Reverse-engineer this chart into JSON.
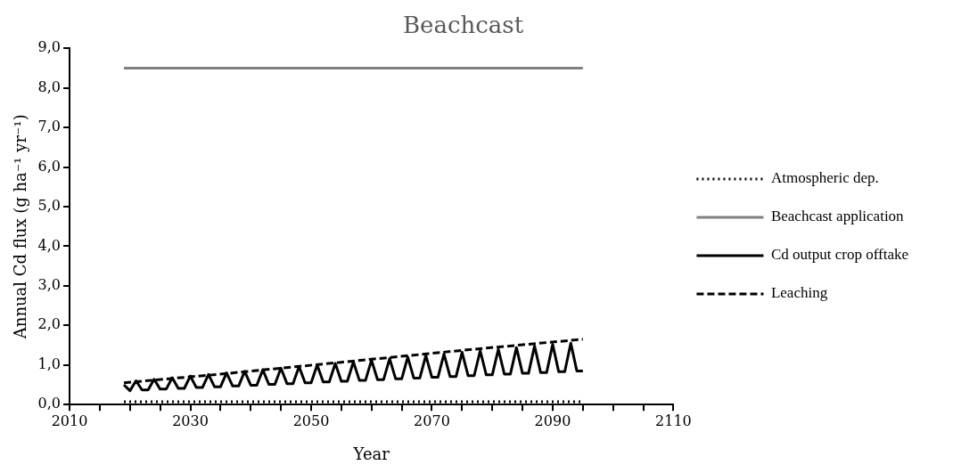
{
  "chart_data": {
    "type": "line",
    "title": "Beachcast",
    "xlabel": "Year",
    "ylabel": "Annual Cd flux (g ha⁻¹ yr⁻¹)",
    "xlim": [
      2010,
      2110
    ],
    "xticks": [
      2010,
      {
        "value": 2015,
        "label": null
      },
      {
        "value": 2020,
        "label": null
      },
      {
        "value": 2025,
        "label": null
      },
      2030,
      {
        "value": 2035,
        "label": null
      },
      {
        "value": 2040,
        "label": null
      },
      {
        "value": 2045,
        "label": null
      },
      2050,
      {
        "value": 2055,
        "label": null
      },
      {
        "value": 2060,
        "label": null
      },
      {
        "value": 2065,
        "label": null
      },
      2070,
      {
        "value": 2075,
        "label": null
      },
      {
        "value": 2080,
        "label": null
      },
      {
        "value": 2085,
        "label": null
      },
      2090,
      {
        "value": 2095,
        "label": null
      },
      {
        "value": 2100,
        "label": null
      },
      {
        "value": 2105,
        "label": null
      },
      2110
    ],
    "ylim": [
      0,
      9
    ],
    "yticks": [
      {
        "value": 0,
        "label": "0,0"
      },
      {
        "value": 1,
        "label": "1,0"
      },
      {
        "value": 2,
        "label": "2,0"
      },
      {
        "value": 3,
        "label": "3,0"
      },
      {
        "value": 4,
        "label": "4,0"
      },
      {
        "value": 5,
        "label": "5,0"
      },
      {
        "value": 6,
        "label": "6,0"
      },
      {
        "value": 7,
        "label": "7,0"
      },
      {
        "value": 8,
        "label": "8,0"
      },
      {
        "value": 9,
        "label": "9,0"
      }
    ],
    "grid": false,
    "legend": "right",
    "marker": "none",
    "series": [
      {
        "name": "Atmospheric dep.",
        "color": "#000000",
        "line_style": "dotted",
        "x": [
          2019,
          2095
        ],
        "values": [
          0.07,
          0.07
        ]
      },
      {
        "name": "Beachcast application",
        "color": "#808080",
        "line_style": "solid",
        "x": [
          2019,
          2095
        ],
        "values": [
          8.5,
          8.5
        ]
      },
      {
        "name": "Cd output crop offtake",
        "color": "#000000",
        "line_style": "solid",
        "x": [
          2019,
          2020,
          2021,
          2022,
          2023,
          2024,
          2025,
          2026,
          2027,
          2028,
          2029,
          2030,
          2031,
          2032,
          2033,
          2034,
          2035,
          2036,
          2037,
          2038,
          2039,
          2040,
          2041,
          2042,
          2043,
          2044,
          2045,
          2046,
          2047,
          2048,
          2049,
          2050,
          2051,
          2052,
          2053,
          2054,
          2055,
          2056,
          2057,
          2058,
          2059,
          2060,
          2061,
          2062,
          2063,
          2064,
          2065,
          2066,
          2067,
          2068,
          2069,
          2070,
          2071,
          2072,
          2073,
          2074,
          2075,
          2076,
          2077,
          2078,
          2079,
          2080,
          2081,
          2082,
          2083,
          2084,
          2085,
          2086,
          2087,
          2088,
          2089,
          2090,
          2091,
          2092,
          2093,
          2094,
          2095
        ],
        "values": [
          0.5,
          0.35,
          0.6,
          0.37,
          0.37,
          0.64,
          0.39,
          0.39,
          0.68,
          0.41,
          0.41,
          0.72,
          0.43,
          0.43,
          0.76,
          0.45,
          0.45,
          0.8,
          0.47,
          0.47,
          0.84,
          0.49,
          0.49,
          0.88,
          0.51,
          0.51,
          0.92,
          0.53,
          0.53,
          0.96,
          0.55,
          0.55,
          1.0,
          0.57,
          0.57,
          1.04,
          0.59,
          0.59,
          1.08,
          0.61,
          0.61,
          1.12,
          0.63,
          0.63,
          1.16,
          0.65,
          0.65,
          1.2,
          0.67,
          0.67,
          1.24,
          0.69,
          0.69,
          1.28,
          0.71,
          0.71,
          1.32,
          0.73,
          0.73,
          1.36,
          0.75,
          0.75,
          1.4,
          0.77,
          0.77,
          1.44,
          0.79,
          0.79,
          1.48,
          0.81,
          0.81,
          1.52,
          0.83,
          0.83,
          1.55,
          0.85,
          0.85
        ]
      },
      {
        "name": "Leaching",
        "color": "#000000",
        "line_style": "dashed",
        "x": [
          2019,
          2035,
          2055,
          2075,
          2095
        ],
        "values": [
          0.55,
          0.77,
          1.07,
          1.37,
          1.65
        ]
      }
    ]
  }
}
